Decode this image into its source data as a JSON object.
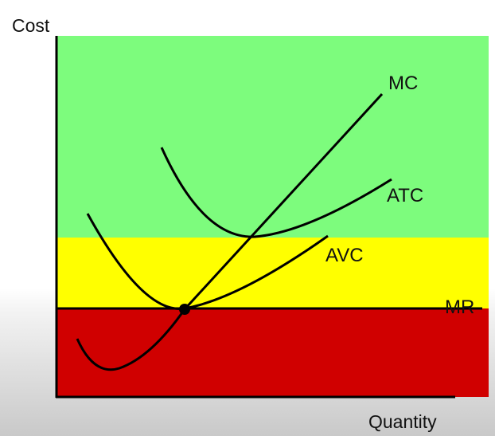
{
  "axes": {
    "y_label": "Cost",
    "x_label": "Quantity"
  },
  "zones": [
    {
      "name": "profit-zone",
      "color": "#7dfc7d"
    },
    {
      "name": "loss-minimizing-zone",
      "color": "#ffff00"
    },
    {
      "name": "shutdown-zone",
      "color": "#d00000"
    }
  ],
  "curves": {
    "mc": {
      "label": "MC",
      "color": "#000000"
    },
    "atc": {
      "label": "ATC",
      "color": "#000000"
    },
    "avc": {
      "label": "AVC",
      "color": "#000000"
    },
    "mr": {
      "label": "MR",
      "color": "#000000"
    }
  },
  "points": {
    "shutdown_point": {
      "color": "#000000"
    }
  }
}
